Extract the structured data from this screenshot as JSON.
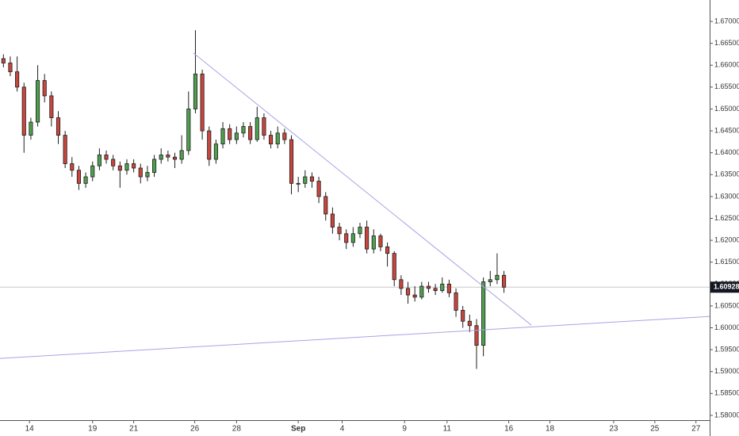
{
  "chart_data": {
    "type": "candlestick",
    "open": [
      1.6615,
      1.6605,
      1.6585,
      1.655,
      1.644,
      1.647,
      1.6565,
      1.653,
      1.648,
      1.644,
      1.6375,
      1.636,
      1.633,
      1.6345,
      1.637,
      1.6395,
      1.6385,
      1.637,
      1.636,
      1.6375,
      1.6365,
      1.6345,
      1.6355,
      1.6385,
      1.6395,
      1.639,
      1.6385,
      1.6405,
      1.65,
      1.658,
      1.645,
      1.6385,
      1.642,
      1.6455,
      1.643,
      1.6445,
      1.646,
      1.643,
      1.648,
      1.644,
      1.642,
      1.6445,
      1.643,
      1.633,
      1.633,
      1.6345,
      1.6335,
      1.63,
      1.626,
      1.623,
      1.6215,
      1.6195,
      1.6215,
      1.623,
      1.618,
      1.621,
      1.6185,
      1.617,
      1.611,
      1.609,
      1.6075,
      1.607,
      1.6095,
      1.609,
      1.6085,
      1.61,
      1.608,
      1.604,
      1.6015,
      1.6005,
      1.596,
      1.6105,
      1.611,
      1.612
    ],
    "high": [
      1.6625,
      1.662,
      1.662,
      1.656,
      1.648,
      1.66,
      1.658,
      1.654,
      1.6495,
      1.645,
      1.639,
      1.637,
      1.6355,
      1.638,
      1.641,
      1.6405,
      1.6395,
      1.638,
      1.6385,
      1.6385,
      1.6375,
      1.637,
      1.6395,
      1.641,
      1.6405,
      1.64,
      1.644,
      1.654,
      1.668,
      1.659,
      1.646,
      1.643,
      1.647,
      1.6465,
      1.646,
      1.647,
      1.647,
      1.6505,
      1.649,
      1.645,
      1.646,
      1.6455,
      1.644,
      1.6345,
      1.636,
      1.6355,
      1.6345,
      1.631,
      1.6275,
      1.624,
      1.6225,
      1.623,
      1.624,
      1.6245,
      1.6225,
      1.6215,
      1.6195,
      1.6175,
      1.612,
      1.6105,
      1.6095,
      1.6105,
      1.6105,
      1.61,
      1.6115,
      1.611,
      1.609,
      1.605,
      1.603,
      1.602,
      1.6115,
      1.613,
      1.617,
      1.613
    ],
    "low": [
      1.6595,
      1.6575,
      1.654,
      1.64,
      1.643,
      1.646,
      1.6515,
      1.646,
      1.642,
      1.6365,
      1.6345,
      1.6315,
      1.632,
      1.6335,
      1.636,
      1.6375,
      1.636,
      1.632,
      1.635,
      1.6355,
      1.633,
      1.6335,
      1.6345,
      1.6375,
      1.638,
      1.6365,
      1.6375,
      1.6395,
      1.649,
      1.643,
      1.637,
      1.6375,
      1.641,
      1.642,
      1.642,
      1.6435,
      1.642,
      1.6425,
      1.643,
      1.641,
      1.641,
      1.642,
      1.6305,
      1.631,
      1.632,
      1.632,
      1.6285,
      1.6245,
      1.6215,
      1.62,
      1.618,
      1.6185,
      1.6205,
      1.617,
      1.617,
      1.6175,
      1.614,
      1.6095,
      1.6075,
      1.6055,
      1.606,
      1.6065,
      1.608,
      1.6075,
      1.608,
      1.607,
      1.6025,
      1.6,
      1.599,
      1.5906,
      1.5935,
      1.6095,
      1.61,
      1.608
    ],
    "close": [
      1.6605,
      1.6585,
      1.655,
      1.644,
      1.647,
      1.6565,
      1.653,
      1.648,
      1.644,
      1.6375,
      1.636,
      1.633,
      1.6345,
      1.637,
      1.6395,
      1.6385,
      1.637,
      1.636,
      1.6375,
      1.6365,
      1.6345,
      1.6355,
      1.6385,
      1.6395,
      1.639,
      1.6385,
      1.6405,
      1.65,
      1.658,
      1.645,
      1.6385,
      1.642,
      1.6455,
      1.643,
      1.6445,
      1.646,
      1.643,
      1.648,
      1.644,
      1.642,
      1.6445,
      1.643,
      1.633,
      1.633,
      1.6345,
      1.6335,
      1.63,
      1.626,
      1.623,
      1.6215,
      1.6195,
      1.6215,
      1.623,
      1.618,
      1.621,
      1.6185,
      1.617,
      1.611,
      1.609,
      1.6075,
      1.607,
      1.6095,
      1.609,
      1.6085,
      1.61,
      1.608,
      1.604,
      1.6015,
      1.6005,
      1.596,
      1.6105,
      1.611,
      1.612,
      1.60928
    ],
    "up_color": "#4e9f4e",
    "down_color": "#c8463e",
    "outline_color": "#1e1e1e",
    "last_price": 1.60928,
    "trendlines": [
      {
        "x": [
          27.7,
          77
        ],
        "y": [
          1.6628,
          1.6006
        ],
        "color": "#a9a3e6"
      },
      {
        "x": [
          -0.5,
          103
        ],
        "y": [
          1.593,
          1.6026
        ],
        "color": "#a9a3e6"
      }
    ],
    "xlim": [
      -0.5,
      103
    ],
    "ylim": [
      1.5789,
      1.6749
    ],
    "xticks": [
      {
        "value": 3.8,
        "label": "14"
      },
      {
        "value": 13,
        "label": "19"
      },
      {
        "value": 19,
        "label": "21"
      },
      {
        "value": 27.9,
        "label": "26"
      },
      {
        "value": 34,
        "label": "28"
      },
      {
        "value": 43,
        "label": "Sep"
      },
      {
        "value": 49.4,
        "label": "4"
      },
      {
        "value": 58.5,
        "label": "9"
      },
      {
        "value": 64.7,
        "label": "11"
      },
      {
        "value": 73.7,
        "label": "16"
      },
      {
        "value": 79.7,
        "label": "18"
      },
      {
        "value": 89,
        "label": "23"
      },
      {
        "value": 95,
        "label": "25"
      },
      {
        "value": 101,
        "label": "27"
      }
    ],
    "yticks": [
      {
        "value": 1.58,
        "label": "1.58000"
      },
      {
        "value": 1.585,
        "label": "1.58500"
      },
      {
        "value": 1.59,
        "label": "1.59000"
      },
      {
        "value": 1.595,
        "label": "1.59500"
      },
      {
        "value": 1.6,
        "label": "1.60000"
      },
      {
        "value": 1.605,
        "label": "1.60500"
      },
      {
        "value": 1.61,
        "label": "1.61000"
      },
      {
        "value": 1.615,
        "label": "1.61500"
      },
      {
        "value": 1.62,
        "label": "1.62000"
      },
      {
        "value": 1.625,
        "label": "1.62500"
      },
      {
        "value": 1.63,
        "label": "1.63000"
      },
      {
        "value": 1.635,
        "label": "1.63500"
      },
      {
        "value": 1.64,
        "label": "1.64000"
      },
      {
        "value": 1.645,
        "label": "1.64500"
      },
      {
        "value": 1.65,
        "label": "1.65000"
      },
      {
        "value": 1.655,
        "label": "1.65500"
      },
      {
        "value": 1.66,
        "label": "1.66000"
      },
      {
        "value": 1.665,
        "label": "1.66500"
      },
      {
        "value": 1.67,
        "label": "1.67000"
      }
    ]
  }
}
